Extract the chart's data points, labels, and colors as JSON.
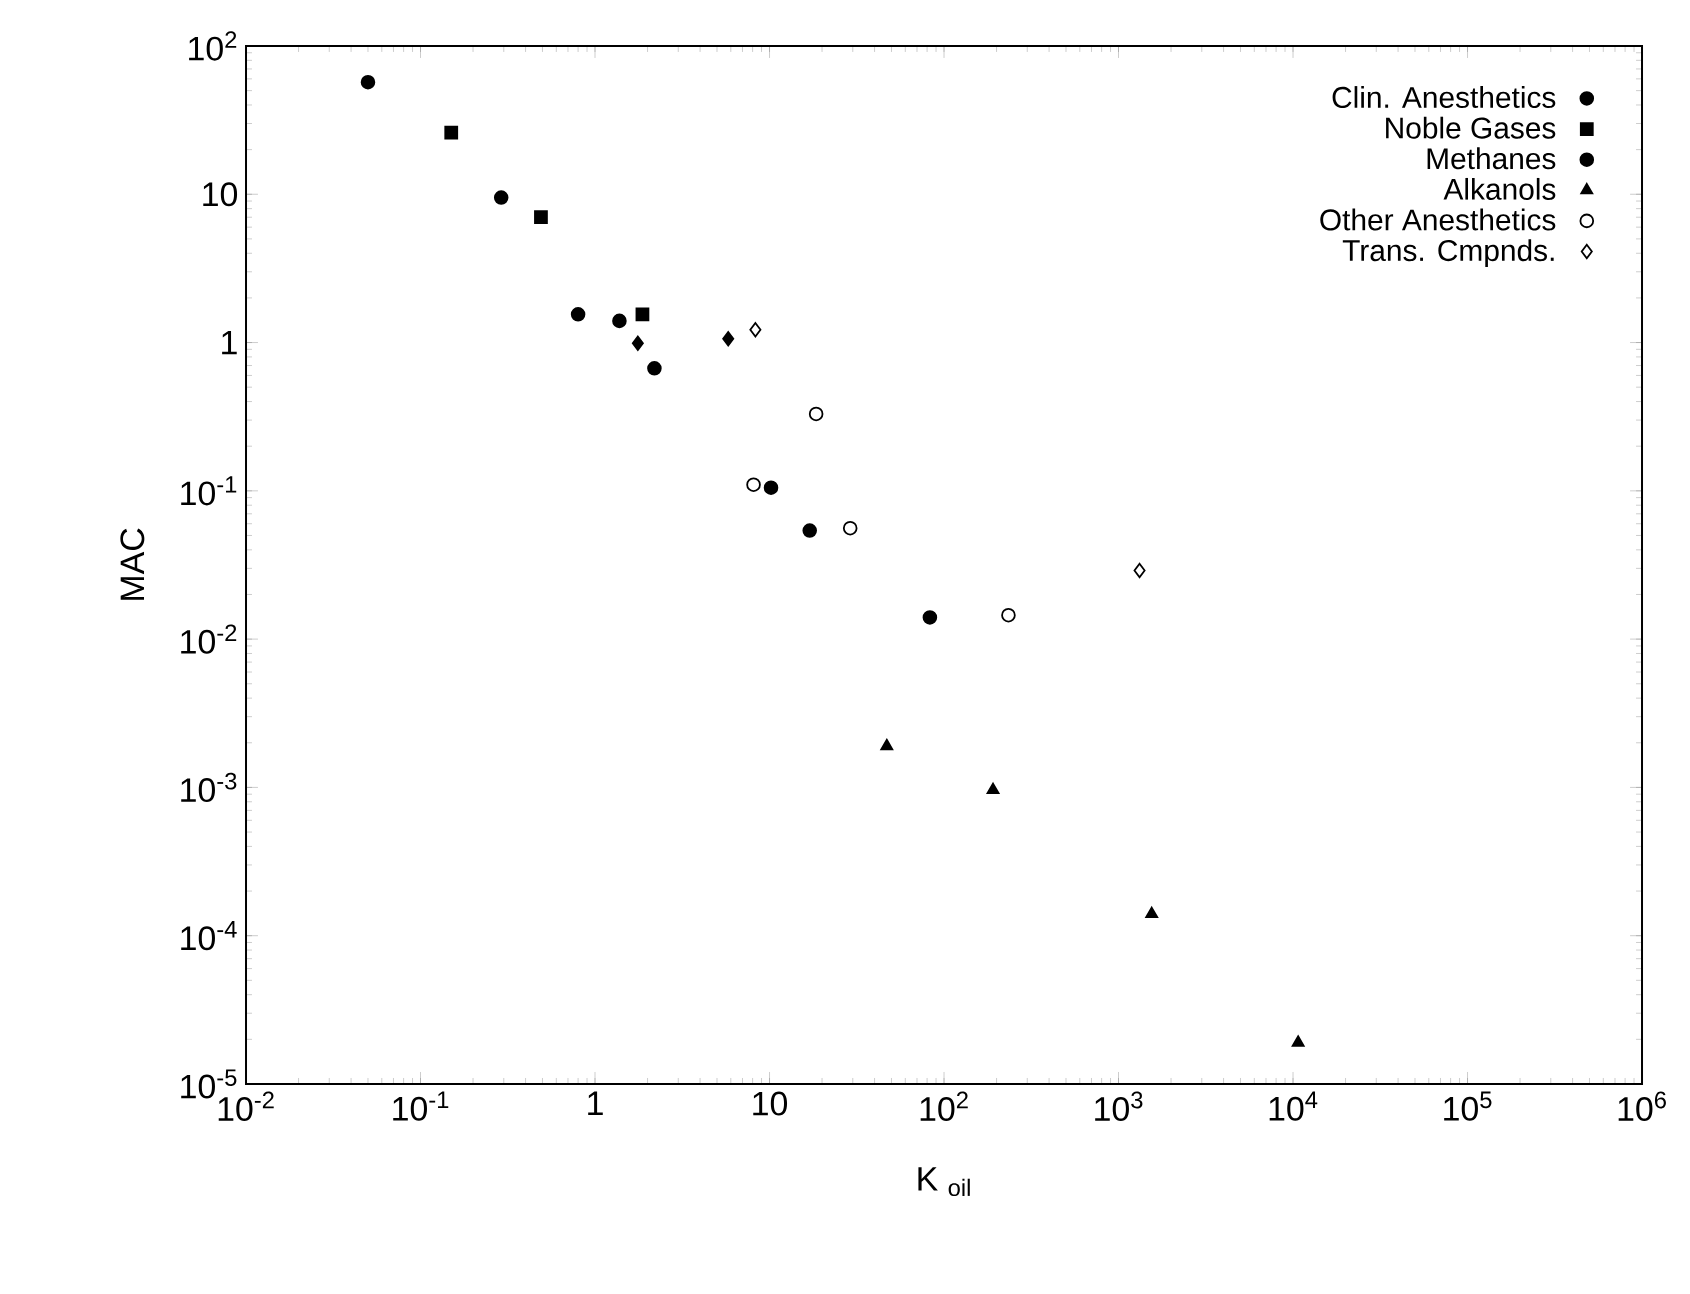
{
  "chart_data": {
    "type": "scatter",
    "xlabel": "K $_{oil}$",
    "ylabel": "MAC",
    "log": "xy",
    "grid": false,
    "legend": "top right",
    "xlim": [
      0.01,
      1000000
    ],
    "ylim": [
      1e-05,
      100
    ],
    "xticks": [
      {
        "value": 0.01,
        "label": "10$^{-2}$"
      },
      {
        "value": 0.1,
        "label": "10$^{-1}$"
      },
      1,
      10,
      {
        "value": 100,
        "label": "10$^{2}$"
      },
      {
        "value": 1000,
        "label": "10$^{3}$"
      },
      {
        "value": 10000,
        "label": "10$^{4}$"
      },
      {
        "value": 100000,
        "label": "10$^{5}$"
      },
      {
        "value": 1000000,
        "label": "10$^{6}$"
      }
    ],
    "yticks": [
      {
        "value": 1e-05,
        "label": "10$^{-5}$"
      },
      {
        "value": 0.0001,
        "label": "10$^{-4}$"
      },
      {
        "value": 0.001,
        "label": "10$^{-3}$"
      },
      {
        "value": 0.01,
        "label": "10$^{-2}$"
      },
      {
        "value": 0.1,
        "label": "10$^{-1}$"
      },
      1,
      10,
      {
        "value": 100,
        "label": "10$^{2}$"
      }
    ],
    "series": [
      {
        "name": "Clin. Anesthetics",
        "color": "#000000",
        "marker": "circle",
        "x": [
          10.2,
          17,
          83
        ],
        "values": [
          0.105,
          0.054,
          0.014
        ]
      },
      {
        "name": "Noble Gases",
        "color": "#000000",
        "marker": "square",
        "x": [
          0.15,
          0.49,
          1.87
        ],
        "values": [
          26,
          7.0,
          1.55
        ]
      },
      {
        "name": "Methanes",
        "color": "#000000",
        "marker": "circle",
        "x": [
          0.05,
          0.29,
          0.8,
          1.38,
          2.19
        ],
        "values": [
          57,
          9.5,
          1.55,
          1.4,
          0.67
        ]
      },
      {
        "name": "Alkanols",
        "color": "#000000",
        "marker": "triangle",
        "x": [
          47,
          191,
          1550,
          10700
        ],
        "values": [
          0.0019,
          0.00096,
          0.00014,
          1.9e-05
        ]
      },
      {
        "name": "Other Anesthetics",
        "color": "#ffffff",
        "marker": "circle",
        "x": [
          8.1,
          18.5,
          29,
          234
        ],
        "values": [
          0.11,
          0.33,
          0.056,
          0.0145
        ]
      },
      {
        "name": "Trans. Cmpnds.",
        "color": "#ffffff",
        "marker": "diamond",
        "x": [
          8.3,
          1320
        ],
        "values": [
          1.22,
          0.029
        ]
      },
      {
        "color": "#000000",
        "marker": "diamond",
        "x": [
          1.76,
          5.8
        ],
        "values": [
          0.99,
          1.06
        ]
      }
    ]
  }
}
